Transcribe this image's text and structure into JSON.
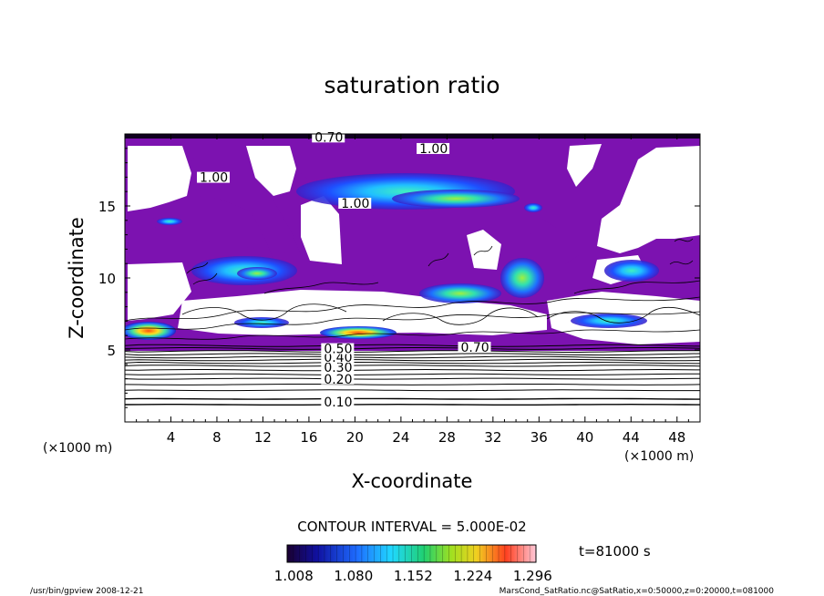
{
  "chart_data": {
    "type": "heatmap",
    "title": "saturation ratio",
    "xlabel": "X-coordinate",
    "ylabel": "Z-coordinate",
    "x_unit": "(×1000 m)",
    "y_unit": "(×1000 m)",
    "xlim": [
      0,
      50
    ],
    "ylim": [
      0,
      20
    ],
    "x_ticks": [
      4,
      8,
      12,
      16,
      20,
      24,
      28,
      32,
      36,
      40,
      44,
      48
    ],
    "y_ticks": [
      5,
      10,
      15
    ],
    "contour_interval_text": "CONTOUR INTERVAL = 5.000E-02",
    "time_text": "t=81000 s",
    "colorbar_ticks": [
      "1.008",
      "1.080",
      "1.152",
      "1.224",
      "1.296"
    ],
    "colorbar_range": [
      1.0,
      1.3
    ],
    "contour_labels": [
      {
        "text": "0.10",
        "x": 17.3,
        "y": 1.2
      },
      {
        "text": "0.20",
        "x": 17.3,
        "y": 2.8
      },
      {
        "text": "0.30",
        "x": 17.3,
        "y": 3.6
      },
      {
        "text": "0.40",
        "x": 17.3,
        "y": 4.3
      },
      {
        "text": "0.50",
        "x": 17.3,
        "y": 4.9
      },
      {
        "text": "0.70",
        "x": 29.2,
        "y": 5.0
      },
      {
        "text": "1.00",
        "x": 25.6,
        "y": 18.8
      },
      {
        "text": "1.00",
        "x": 18.8,
        "y": 15.0
      },
      {
        "text": "1.00",
        "x": 6.5,
        "y": 16.8
      },
      {
        "text": "0.70",
        "x": 16.5,
        "y": 19.6
      }
    ],
    "flat_contour_levels_z": [
      1.2,
      1.6,
      2.2,
      2.6,
      3.0,
      3.3,
      3.6,
      3.9,
      4.1,
      4.3,
      4.5,
      4.7,
      4.9,
      5.1,
      5.3
    ],
    "supersaturated_regions": [
      {
        "x": [
          0.3,
          4.5
        ],
        "z": [
          5.6,
          7.0
        ],
        "peak": 1.3
      },
      {
        "x": [
          16.5,
          22.5
        ],
        "z": [
          5.6,
          6.6
        ],
        "peak": 1.3
      },
      {
        "x": [
          7.5,
          14.5
        ],
        "z": [
          9.3,
          11.6
        ],
        "peak": 1.15
      },
      {
        "x": [
          15.0,
          34.0
        ],
        "z": [
          14.8,
          17.8
        ],
        "peak": 1.15
      },
      {
        "x": [
          25.5,
          32.0
        ],
        "z": [
          8.4,
          9.8
        ],
        "peak": 1.2
      },
      {
        "x": [
          32.5,
          36.5
        ],
        "z": [
          8.0,
          11.2
        ],
        "peak": 1.2
      },
      {
        "x": [
          41.5,
          46.5
        ],
        "z": [
          9.6,
          11.8
        ],
        "peak": 1.12
      },
      {
        "x": [
          38.5,
          45.5
        ],
        "z": [
          6.3,
          7.6
        ],
        "peak": 1.12
      },
      {
        "x": [
          9.0,
          14.0
        ],
        "z": [
          6.7,
          7.6
        ],
        "peak": 1.08
      }
    ]
  },
  "footer": {
    "left": "/usr/bin/gpview  2008-12-21",
    "right": "MarsCond_SatRatio.nc@SatRatio,x=0:50000,z=0:20000,t=081000"
  },
  "colors": {
    "saturated_fill": "#7c12b0",
    "axis": "#000000",
    "background": "#ffffff"
  }
}
